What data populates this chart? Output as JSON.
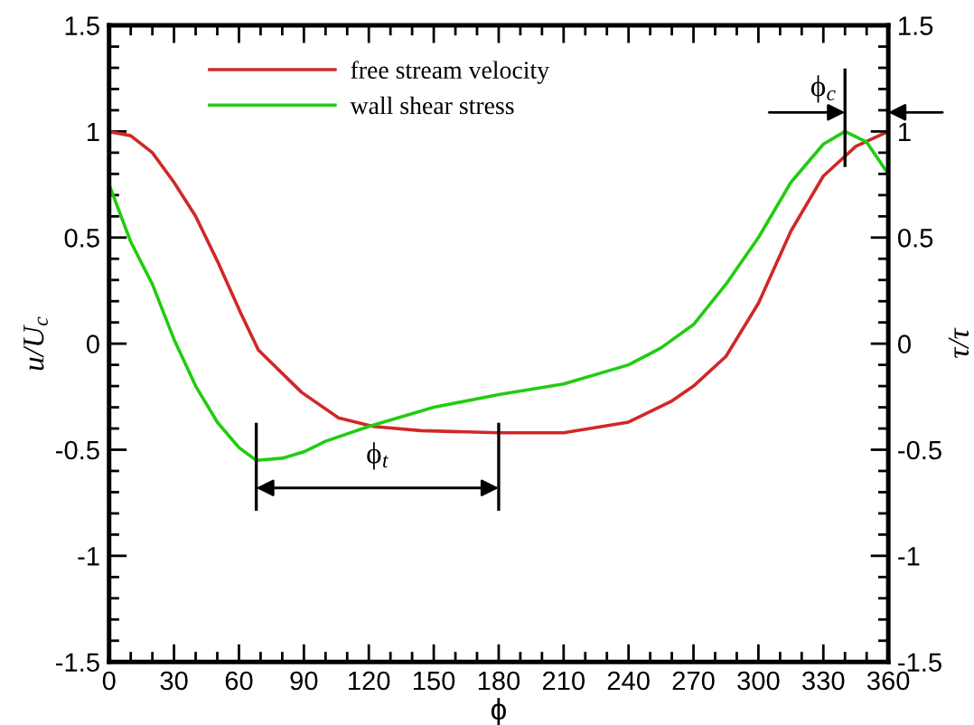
{
  "chart_data": {
    "type": "line",
    "xlabel": "ϕ",
    "ylabel": "u/U$_{c}$",
    "y2label": "τ/τ",
    "xlim": [
      0,
      360
    ],
    "xticks": [
      0,
      30,
      60,
      90,
      120,
      150,
      180,
      210,
      240,
      270,
      300,
      330,
      360
    ],
    "ylim": [
      -1.5,
      1.5
    ],
    "yticks": [
      -1.5,
      -1,
      -0.5,
      0,
      0.5,
      1,
      1.5
    ],
    "y2lim": [
      -1.5,
      1.5
    ],
    "y2ticks": [
      -1.5,
      -1,
      -0.5,
      0,
      0.5,
      1,
      1.5
    ],
    "grid": false,
    "legend": "top left",
    "line_style": "solid",
    "marker": "none",
    "series": [
      {
        "name": "free stream velocity",
        "color": "#d02828",
        "x": [
          0,
          10,
          20,
          30,
          40,
          50,
          61,
          69,
          89,
          106,
          122,
          144,
          180,
          210,
          240,
          260,
          270,
          285,
          300,
          315,
          330,
          345,
          360
        ],
        "values": [
          1.0,
          0.98,
          0.9,
          0.76,
          0.6,
          0.39,
          0.14,
          -0.03,
          -0.23,
          -0.35,
          -0.39,
          -0.41,
          -0.42,
          -0.42,
          -0.37,
          -0.27,
          -0.2,
          -0.06,
          0.19,
          0.53,
          0.79,
          0.93,
          1.0
        ]
      },
      {
        "name": "wall shear stress",
        "color": "#22cc11",
        "x": [
          0,
          10,
          20,
          30,
          40,
          50,
          60,
          68,
          80,
          90,
          100,
          120,
          150,
          180,
          210,
          240,
          255,
          270,
          285,
          300,
          315,
          330,
          340,
          350,
          360
        ],
        "values": [
          0.75,
          0.48,
          0.28,
          0.02,
          -0.2,
          -0.37,
          -0.49,
          -0.55,
          -0.54,
          -0.51,
          -0.46,
          -0.39,
          -0.3,
          -0.24,
          -0.19,
          -0.1,
          -0.02,
          0.09,
          0.28,
          0.5,
          0.76,
          0.94,
          1.0,
          0.95,
          0.8
        ]
      }
    ],
    "annotations": [
      "ϕ$_{t}$",
      {
        "text": "ϕ$_{c}$",
        "x": 340,
        "y": 1.0
      }
    ]
  }
}
